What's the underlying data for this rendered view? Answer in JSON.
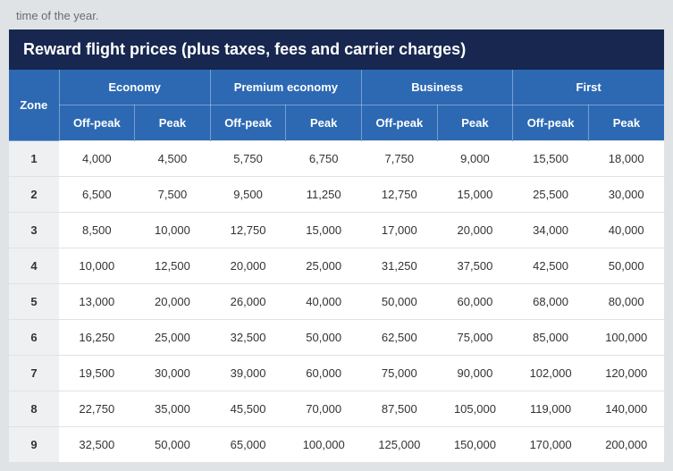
{
  "context_fragment": "time of the year.",
  "table": {
    "type": "table",
    "title": "Reward flight prices (plus taxes, fees and carrier charges)",
    "title_bg": "#172750",
    "title_color": "#ffffff",
    "header_bg": "#2d69b3",
    "header_color": "#ffffff",
    "zone_col_bg": "#eef0f2",
    "row_border_color": "#e0e2e5",
    "body_bg": "#ffffff",
    "text_color": "#333333",
    "zone_header": "Zone",
    "class_groups": [
      {
        "label": "Economy",
        "sub": [
          "Off-peak",
          "Peak"
        ]
      },
      {
        "label": "Premium economy",
        "sub": [
          "Off-peak",
          "Peak"
        ]
      },
      {
        "label": "Business",
        "sub": [
          "Off-peak",
          "Peak"
        ]
      },
      {
        "label": "First",
        "sub": [
          "Off-peak",
          "Peak"
        ]
      }
    ],
    "rows": [
      {
        "zone": "1",
        "cells": [
          "4,000",
          "4,500",
          "5,750",
          "6,750",
          "7,750",
          "9,000",
          "15,500",
          "18,000"
        ]
      },
      {
        "zone": "2",
        "cells": [
          "6,500",
          "7,500",
          "9,500",
          "11,250",
          "12,750",
          "15,000",
          "25,500",
          "30,000"
        ]
      },
      {
        "zone": "3",
        "cells": [
          "8,500",
          "10,000",
          "12,750",
          "15,000",
          "17,000",
          "20,000",
          "34,000",
          "40,000"
        ]
      },
      {
        "zone": "4",
        "cells": [
          "10,000",
          "12,500",
          "20,000",
          "25,000",
          "31,250",
          "37,500",
          "42,500",
          "50,000"
        ]
      },
      {
        "zone": "5",
        "cells": [
          "13,000",
          "20,000",
          "26,000",
          "40,000",
          "50,000",
          "60,000",
          "68,000",
          "80,000"
        ]
      },
      {
        "zone": "6",
        "cells": [
          "16,250",
          "25,000",
          "32,500",
          "50,000",
          "62,500",
          "75,000",
          "85,000",
          "100,000"
        ]
      },
      {
        "zone": "7",
        "cells": [
          "19,500",
          "30,000",
          "39,000",
          "60,000",
          "75,000",
          "90,000",
          "102,000",
          "120,000"
        ]
      },
      {
        "zone": "8",
        "cells": [
          "22,750",
          "35,000",
          "45,500",
          "70,000",
          "87,500",
          "105,000",
          "119,000",
          "140,000"
        ]
      },
      {
        "zone": "9",
        "cells": [
          "32,500",
          "50,000",
          "65,000",
          "100,000",
          "125,000",
          "150,000",
          "170,000",
          "200,000"
        ]
      }
    ]
  }
}
